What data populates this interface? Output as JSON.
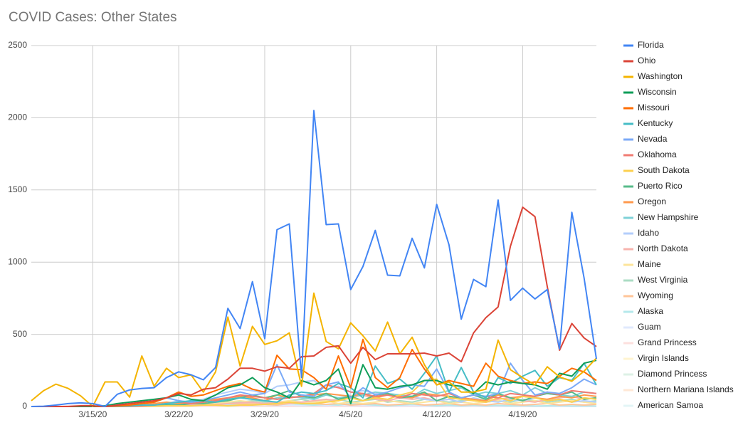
{
  "chart_data": {
    "type": "line",
    "title": "COVID Cases: Other States",
    "categories": [
      null,
      null,
      null,
      null,
      null,
      "3/15/20",
      null,
      null,
      null,
      null,
      null,
      null,
      "3/22/20",
      null,
      null,
      null,
      null,
      null,
      null,
      "3/29/20",
      null,
      null,
      null,
      null,
      null,
      null,
      "4/5/20",
      null,
      null,
      null,
      null,
      null,
      null,
      "4/12/20",
      null,
      null,
      null,
      null,
      null,
      null,
      "4/19/20",
      null,
      null,
      null,
      null,
      null,
      null
    ],
    "ylim": [
      0,
      2500
    ],
    "yticks": [
      0,
      500,
      1000,
      1500,
      2000,
      2500
    ],
    "grid": true,
    "legend": "right",
    "series": [
      {
        "name": "Florida",
        "color": "#4285f4",
        "values": [
          0,
          2,
          10,
          20,
          25,
          20,
          0,
          85,
          115,
          125,
          130,
          200,
          240,
          220,
          185,
          270,
          680,
          540,
          865,
          470,
          1225,
          1265,
          200,
          2050,
          1260,
          1265,
          810,
          970,
          1220,
          910,
          905,
          1165,
          960,
          1400,
          1120,
          605,
          880,
          830,
          1430,
          735,
          820,
          745,
          810,
          400,
          1345,
          890,
          330
        ]
      },
      {
        "name": "Ohio",
        "color": "#db4437",
        "values": [
          0,
          0,
          0,
          0,
          5,
          5,
          0,
          10,
          20,
          30,
          40,
          60,
          90,
          80,
          120,
          130,
          190,
          265,
          265,
          245,
          275,
          265,
          345,
          350,
          410,
          420,
          300,
          410,
          325,
          365,
          365,
          365,
          370,
          350,
          370,
          310,
          510,
          615,
          690,
          1110,
          1380,
          1315,
          830,
          390,
          575,
          475,
          415
        ]
      },
      {
        "name": "Washington",
        "color": "#f4b400",
        "values": [
          40,
          110,
          155,
          125,
          75,
          0,
          170,
          170,
          65,
          350,
          140,
          265,
          200,
          220,
          100,
          240,
          620,
          280,
          555,
          430,
          455,
          510,
          140,
          785,
          450,
          400,
          580,
          490,
          385,
          585,
          365,
          480,
          290,
          150,
          170,
          100,
          100,
          120,
          460,
          255,
          200,
          150,
          275,
          205,
          175,
          245,
          335
        ]
      },
      {
        "name": "Wisconsin",
        "color": "#0f9d58",
        "values": [
          0,
          0,
          0,
          0,
          0,
          0,
          5,
          20,
          30,
          40,
          50,
          60,
          80,
          50,
          40,
          80,
          130,
          150,
          200,
          130,
          100,
          60,
          180,
          150,
          180,
          260,
          20,
          290,
          130,
          120,
          140,
          150,
          180,
          180,
          150,
          140,
          90,
          170,
          150,
          170,
          160,
          150,
          120,
          230,
          210,
          300,
          320
        ]
      },
      {
        "name": "Missouri",
        "color": "#ff6d00",
        "values": [
          0,
          0,
          0,
          0,
          0,
          0,
          0,
          5,
          10,
          20,
          30,
          60,
          100,
          70,
          80,
          110,
          140,
          160,
          120,
          100,
          355,
          260,
          255,
          200,
          120,
          350,
          130,
          465,
          200,
          130,
          200,
          395,
          260,
          150,
          180,
          160,
          140,
          300,
          210,
          180,
          160,
          170,
          160,
          210,
          265,
          240,
          180
        ]
      },
      {
        "name": "Kentucky",
        "color": "#46bdc6",
        "values": [
          0,
          0,
          0,
          0,
          0,
          0,
          0,
          2,
          5,
          10,
          10,
          20,
          30,
          40,
          40,
          30,
          50,
          60,
          50,
          40,
          30,
          80,
          100,
          90,
          110,
          160,
          130,
          60,
          280,
          160,
          190,
          120,
          230,
          350,
          100,
          270,
          100,
          60,
          200,
          160,
          210,
          250,
          140,
          200,
          180,
          300,
          150
        ]
      },
      {
        "name": "Nevada",
        "color": "#7baaf7",
        "values": [
          0,
          0,
          0,
          0,
          0,
          0,
          0,
          5,
          10,
          20,
          30,
          60,
          40,
          30,
          40,
          60,
          80,
          100,
          80,
          90,
          290,
          100,
          80,
          70,
          150,
          170,
          60,
          130,
          80,
          100,
          130,
          150,
          140,
          260,
          100,
          60,
          80,
          70,
          90,
          300,
          180,
          80,
          100,
          90,
          130,
          190,
          150
        ]
      },
      {
        "name": "Oklahoma",
        "color": "#f07b72",
        "values": [
          0,
          0,
          0,
          0,
          0,
          0,
          0,
          0,
          2,
          5,
          10,
          20,
          30,
          20,
          30,
          40,
          60,
          80,
          70,
          60,
          50,
          60,
          70,
          90,
          150,
          130,
          100,
          90,
          70,
          80,
          60,
          90,
          80,
          70,
          90,
          60,
          80,
          70,
          60,
          90,
          80,
          70,
          100,
          80,
          110,
          100,
          90
        ]
      },
      {
        "name": "South Dakota",
        "color": "#fcd04f",
        "values": [
          0,
          0,
          0,
          0,
          0,
          0,
          0,
          0,
          1,
          2,
          3,
          5,
          5,
          5,
          10,
          10,
          5,
          10,
          10,
          15,
          20,
          30,
          20,
          20,
          30,
          40,
          60,
          40,
          60,
          50,
          80,
          100,
          180,
          190,
          60,
          50,
          40,
          30,
          60,
          40,
          70,
          60,
          40,
          50,
          30,
          60,
          50
        ]
      },
      {
        "name": "Puerto Rico",
        "color": "#57bb8a",
        "values": [
          0,
          0,
          0,
          0,
          0,
          0,
          0,
          0,
          2,
          5,
          5,
          10,
          10,
          20,
          20,
          30,
          40,
          60,
          80,
          60,
          80,
          110,
          70,
          60,
          90,
          50,
          70,
          40,
          80,
          90,
          60,
          70,
          100,
          40,
          70,
          60,
          80,
          50,
          90,
          60,
          40,
          70,
          90,
          80,
          100,
          50,
          60
        ]
      },
      {
        "name": "Oregon",
        "color": "#ff994d",
        "values": [
          0,
          0,
          0,
          0,
          0,
          0,
          1,
          3,
          5,
          10,
          20,
          30,
          20,
          30,
          40,
          50,
          60,
          70,
          60,
          40,
          80,
          60,
          70,
          80,
          90,
          80,
          70,
          90,
          60,
          80,
          70,
          60,
          90,
          80,
          70,
          60,
          50,
          40,
          80,
          60,
          70,
          60,
          50,
          70,
          60,
          80,
          70
        ]
      },
      {
        "name": "New Hampshire",
        "color": "#7ed1d7",
        "values": [
          0,
          0,
          0,
          0,
          0,
          0,
          0,
          1,
          3,
          5,
          5,
          10,
          20,
          20,
          30,
          40,
          50,
          60,
          50,
          40,
          60,
          70,
          60,
          50,
          80,
          60,
          70,
          80,
          100,
          90,
          80,
          70,
          120,
          90,
          110,
          130,
          80,
          100,
          90,
          110,
          80,
          130,
          90,
          80,
          70,
          100,
          90
        ]
      },
      {
        "name": "Idaho",
        "color": "#b3cefb",
        "values": [
          0,
          0,
          0,
          0,
          0,
          0,
          0,
          0,
          1,
          2,
          10,
          20,
          40,
          30,
          50,
          80,
          100,
          120,
          110,
          90,
          140,
          150,
          170,
          180,
          120,
          140,
          100,
          110,
          90,
          80,
          60,
          70,
          50,
          40,
          50,
          30,
          60,
          40,
          30,
          50,
          40,
          60,
          40,
          50,
          30,
          40,
          30
        ]
      },
      {
        "name": "North Dakota",
        "color": "#f7b4ae",
        "values": [
          0,
          0,
          0,
          0,
          0,
          0,
          0,
          0,
          1,
          2,
          3,
          5,
          5,
          10,
          10,
          15,
          20,
          25,
          30,
          20,
          30,
          25,
          30,
          40,
          50,
          40,
          60,
          80,
          50,
          40,
          60,
          50,
          60,
          40,
          50,
          60,
          40,
          30,
          50,
          60,
          40,
          30,
          50,
          60,
          70,
          50,
          60
        ]
      },
      {
        "name": "Maine",
        "color": "#fde49b",
        "values": [
          0,
          0,
          0,
          0,
          0,
          0,
          0,
          1,
          2,
          3,
          5,
          10,
          15,
          20,
          15,
          20,
          30,
          40,
          30,
          20,
          30,
          40,
          30,
          30,
          40,
          20,
          30,
          20,
          30,
          40,
          30,
          20,
          30,
          40,
          20,
          30,
          20,
          30,
          40,
          20,
          30,
          40,
          20,
          30,
          40,
          30,
          20
        ]
      },
      {
        "name": "West Virginia",
        "color": "#abdcc4",
        "values": [
          0,
          0,
          0,
          0,
          0,
          0,
          0,
          0,
          1,
          2,
          3,
          5,
          10,
          15,
          20,
          20,
          25,
          30,
          40,
          30,
          20,
          40,
          50,
          30,
          40,
          50,
          30,
          40,
          50,
          30,
          40,
          30,
          50,
          40,
          30,
          40,
          50,
          30,
          40,
          30,
          50,
          40,
          30,
          40,
          50,
          30,
          40
        ]
      },
      {
        "name": "Wyoming",
        "color": "#ffc599",
        "values": [
          0,
          0,
          0,
          0,
          0,
          0,
          1,
          2,
          3,
          3,
          5,
          5,
          10,
          10,
          15,
          15,
          20,
          20,
          20,
          15,
          10,
          20,
          25,
          20,
          15,
          20,
          10,
          15,
          20,
          10,
          15,
          20,
          10,
          15,
          20,
          10,
          15,
          10,
          20,
          15,
          10,
          15,
          20,
          10,
          15,
          10,
          15
        ]
      },
      {
        "name": "Alaska",
        "color": "#b5e8eb",
        "values": [
          0,
          0,
          0,
          0,
          0,
          0,
          0,
          1,
          2,
          3,
          5,
          10,
          5,
          10,
          15,
          20,
          15,
          10,
          20,
          15,
          10,
          20,
          15,
          10,
          15,
          10,
          20,
          15,
          10,
          5,
          10,
          15,
          10,
          5,
          10,
          5,
          10,
          5,
          8,
          5,
          6,
          4,
          5,
          6,
          4,
          5,
          3
        ]
      },
      {
        "name": "Guam",
        "color": "#e0e9fd",
        "values": [
          0,
          0,
          0,
          0,
          0,
          0,
          1,
          2,
          3,
          5,
          10,
          10,
          5,
          5,
          10,
          15,
          5,
          10,
          5,
          15,
          5,
          10,
          5,
          8,
          5,
          10,
          5,
          6,
          4,
          5,
          3,
          5,
          2,
          4,
          3,
          2,
          4,
          3,
          2,
          1,
          3,
          2,
          1,
          2,
          1,
          2,
          1
        ]
      },
      {
        "name": "Grand Princess",
        "color": "#fde0de",
        "values": [
          0,
          0,
          0,
          5,
          10,
          20,
          2,
          0,
          0,
          0,
          5,
          0,
          0,
          3,
          0,
          0,
          10,
          0,
          0,
          5,
          0,
          0,
          2,
          0,
          0,
          0,
          0,
          0,
          0,
          0,
          0,
          0,
          0,
          0,
          0,
          0,
          0,
          0,
          0,
          0,
          0,
          0,
          0,
          0,
          0,
          0,
          0
        ]
      },
      {
        "name": "Virgin Islands",
        "color": "#fff4d0",
        "values": [
          0,
          0,
          0,
          0,
          0,
          0,
          0,
          1,
          1,
          0,
          1,
          2,
          3,
          2,
          1,
          2,
          3,
          5,
          2,
          3,
          4,
          1,
          2,
          3,
          1,
          2,
          1,
          3,
          2,
          1,
          2,
          1,
          0,
          1,
          2,
          0,
          1,
          0,
          1,
          0,
          0,
          1,
          0,
          0,
          1,
          0,
          0
        ]
      },
      {
        "name": "Diamond Princess",
        "color": "#ddf1e6",
        "values": [
          0,
          0,
          2,
          0,
          0,
          0,
          0,
          0,
          0,
          0,
          0,
          0,
          0,
          0,
          0,
          0,
          0,
          0,
          0,
          0,
          0,
          0,
          0,
          0,
          0,
          0,
          0,
          0,
          0,
          0,
          0,
          0,
          0,
          0,
          0,
          0,
          0,
          0,
          0,
          0,
          0,
          0,
          0,
          0,
          0,
          0,
          0
        ]
      },
      {
        "name": "Northern Mariana Islands",
        "color": "#ffe8d6",
        "values": [
          0,
          0,
          0,
          0,
          0,
          0,
          0,
          0,
          0,
          0,
          0,
          0,
          0,
          0,
          0,
          0,
          0,
          0,
          0,
          0,
          1,
          0,
          2,
          0,
          1,
          0,
          0,
          2,
          0,
          1,
          0,
          0,
          0,
          0,
          0,
          0,
          0,
          0,
          0,
          0,
          0,
          0,
          0,
          0,
          0,
          0,
          0
        ]
      },
      {
        "name": "American Samoa",
        "color": "#e3f5f6",
        "values": [
          0,
          0,
          0,
          0,
          0,
          0,
          0,
          0,
          0,
          0,
          0,
          0,
          0,
          0,
          0,
          0,
          0,
          0,
          0,
          0,
          0,
          0,
          0,
          0,
          0,
          0,
          0,
          0,
          0,
          0,
          0,
          0,
          0,
          0,
          0,
          0,
          0,
          0,
          0,
          0,
          0,
          0,
          0,
          0,
          0,
          0,
          0
        ]
      }
    ]
  }
}
